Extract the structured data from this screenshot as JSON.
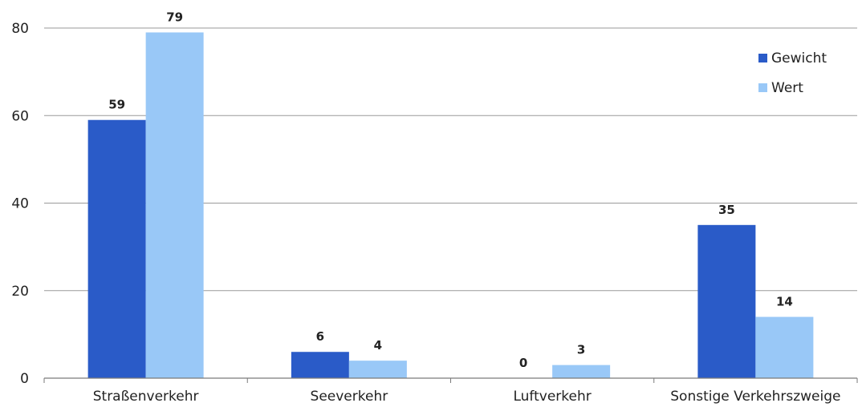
{
  "chart_data": {
    "type": "bar",
    "categories": [
      "Straßenverkehr",
      "Seeverkehr",
      "Luftverkehr",
      "Sonstige Verkehrszweige"
    ],
    "series": [
      {
        "name": "Gewicht",
        "values": [
          59,
          6,
          0,
          35
        ],
        "color": "#2a5bc8"
      },
      {
        "name": "Wert",
        "values": [
          79,
          4,
          3,
          14
        ],
        "color": "#99c8f7"
      }
    ],
    "ylim": [
      0,
      80
    ],
    "yticks": [
      0,
      20,
      40,
      60,
      80
    ],
    "grid": true,
    "legend_position": "top-right",
    "title": "",
    "xlabel": "",
    "ylabel": ""
  }
}
